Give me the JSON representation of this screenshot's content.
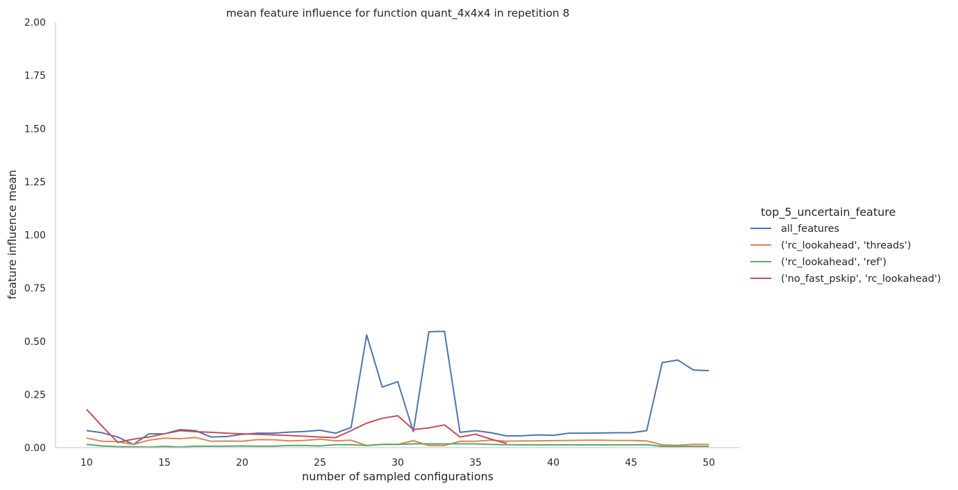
{
  "chart_data": {
    "type": "line",
    "title": "mean feature influence for function quant_4x4x4 in repetition 8",
    "xlabel": "number of sampled configurations",
    "ylabel": "feature influence mean",
    "xlim": [
      8,
      52
    ],
    "ylim": [
      0,
      2.0
    ],
    "xticks": [
      10,
      15,
      20,
      25,
      30,
      35,
      40,
      45,
      50
    ],
    "yticks": [
      0.0,
      0.25,
      0.5,
      0.75,
      1.0,
      1.25,
      1.5,
      1.75,
      2.0
    ],
    "ytick_labels": [
      "0.00",
      "0.25",
      "0.50",
      "0.75",
      "1.00",
      "1.25",
      "1.50",
      "1.75",
      "2.00"
    ],
    "grid": false,
    "legend_title": "top_5_uncertain_feature",
    "legend_position": "center-right outside",
    "series": [
      {
        "name": "all_features",
        "color": "#4c72b0",
        "x": [
          10,
          11,
          12,
          13,
          14,
          15,
          16,
          17,
          18,
          19,
          20,
          21,
          22,
          23,
          24,
          25,
          26,
          27,
          28,
          29,
          30,
          31,
          32,
          33,
          34,
          35,
          36,
          37,
          38,
          39,
          40,
          41,
          42,
          43,
          44,
          45,
          46,
          47,
          48,
          49,
          50
        ],
        "y": [
          0.08,
          0.07,
          0.05,
          0.015,
          0.065,
          0.065,
          0.085,
          0.08,
          0.05,
          0.052,
          0.063,
          0.068,
          0.068,
          0.073,
          0.076,
          0.082,
          0.068,
          0.095,
          0.53,
          0.285,
          0.31,
          0.075,
          0.545,
          0.547,
          0.072,
          0.08,
          0.07,
          0.055,
          0.056,
          0.06,
          0.058,
          0.068,
          0.068,
          0.069,
          0.07,
          0.07,
          0.08,
          0.4,
          0.412,
          0.365,
          0.362
        ]
      },
      {
        "name": "('rc_lookahead', 'threads')",
        "color": "#dd8452",
        "x": [
          10,
          11,
          12,
          13,
          14,
          15,
          16,
          17,
          18,
          19,
          20,
          21,
          22,
          23,
          24,
          25,
          26,
          27,
          28,
          29,
          30,
          31,
          32,
          33,
          34,
          35,
          36,
          37,
          38,
          39,
          40,
          41,
          42,
          43,
          44,
          45,
          46,
          47,
          48,
          49,
          50
        ],
        "y": [
          0.045,
          0.03,
          0.028,
          0.015,
          0.035,
          0.045,
          0.042,
          0.048,
          0.03,
          0.031,
          0.03,
          0.038,
          0.037,
          0.032,
          0.034,
          0.04,
          0.032,
          0.035,
          0.01,
          0.015,
          0.015,
          0.033,
          0.01,
          0.01,
          0.03,
          0.03,
          0.035,
          0.03,
          0.032,
          0.032,
          0.033,
          0.034,
          0.035,
          0.035,
          0.034,
          0.034,
          0.032,
          0.013,
          0.011,
          0.016,
          0.015
        ]
      },
      {
        "name": "('rc_lookahead', 'ref')",
        "color": "#55a868",
        "x": [
          10,
          11,
          12,
          13,
          14,
          15,
          16,
          17,
          18,
          19,
          20,
          21,
          22,
          23,
          24,
          25,
          26,
          27,
          28,
          29,
          30,
          31,
          32,
          33,
          34,
          35,
          36,
          37,
          38,
          39,
          40,
          41,
          42,
          43,
          44,
          45,
          46,
          47,
          48,
          49,
          50
        ],
        "y": [
          0.015,
          0.008,
          0.005,
          0.004,
          0.003,
          0.006,
          0.003,
          0.007,
          0.007,
          0.007,
          0.008,
          0.007,
          0.007,
          0.01,
          0.01,
          0.008,
          0.014,
          0.014,
          0.01,
          0.016,
          0.015,
          0.018,
          0.018,
          0.018,
          0.018,
          0.018,
          0.015,
          0.014,
          0.013,
          0.013,
          0.013,
          0.013,
          0.013,
          0.013,
          0.013,
          0.013,
          0.014,
          0.006,
          0.006,
          0.006,
          0.006
        ]
      },
      {
        "name": "('no_fast_pskip', 'rc_lookahead')",
        "color": "#c44e52",
        "x": [
          10,
          11,
          12,
          13,
          14,
          15,
          16,
          17,
          18,
          19,
          20,
          21,
          22,
          23,
          24,
          25,
          26,
          27,
          28,
          29,
          30,
          31,
          32,
          33,
          34,
          35,
          36,
          37
        ],
        "y": [
          0.18,
          0.1,
          0.025,
          0.04,
          0.05,
          0.065,
          0.08,
          0.075,
          0.072,
          0.068,
          0.065,
          0.063,
          0.06,
          0.057,
          0.054,
          0.05,
          0.047,
          0.08,
          0.115,
          0.138,
          0.15,
          0.085,
          0.093,
          0.107,
          0.05,
          0.063,
          0.04,
          0.02
        ]
      }
    ]
  }
}
